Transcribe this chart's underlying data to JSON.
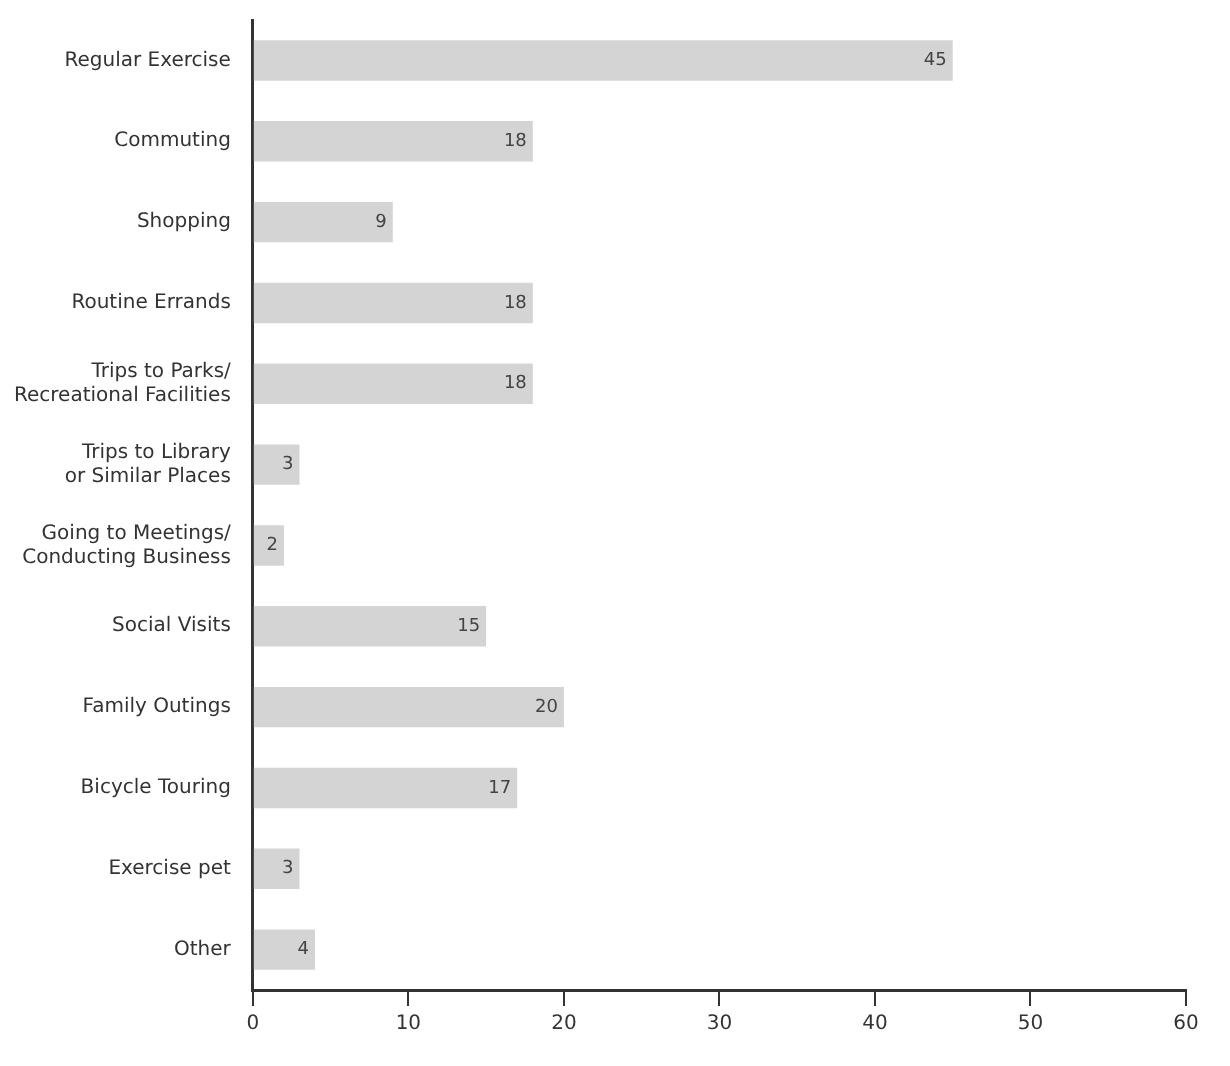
{
  "chart_data": {
    "type": "bar",
    "orientation": "horizontal",
    "categories": [
      "Regular Exercise",
      "Commuting",
      "Shopping",
      "Routine Errands",
      "Trips to Parks/ Recreational Facilities",
      "Trips to Library or Similar Places",
      "Going to Meetings/ Conducting Business",
      "Social Visits",
      "Family Outings",
      "Bicycle Touring",
      "Exercise pet",
      "Other"
    ],
    "values": [
      45,
      18,
      9,
      18,
      18,
      3,
      2,
      15,
      20,
      17,
      3,
      4
    ],
    "color": "#d4d4d4",
    "xlim": [
      0,
      60
    ],
    "xticks": [
      0,
      10,
      20,
      30,
      40,
      50,
      60
    ],
    "grid": false,
    "data_labels": true
  }
}
